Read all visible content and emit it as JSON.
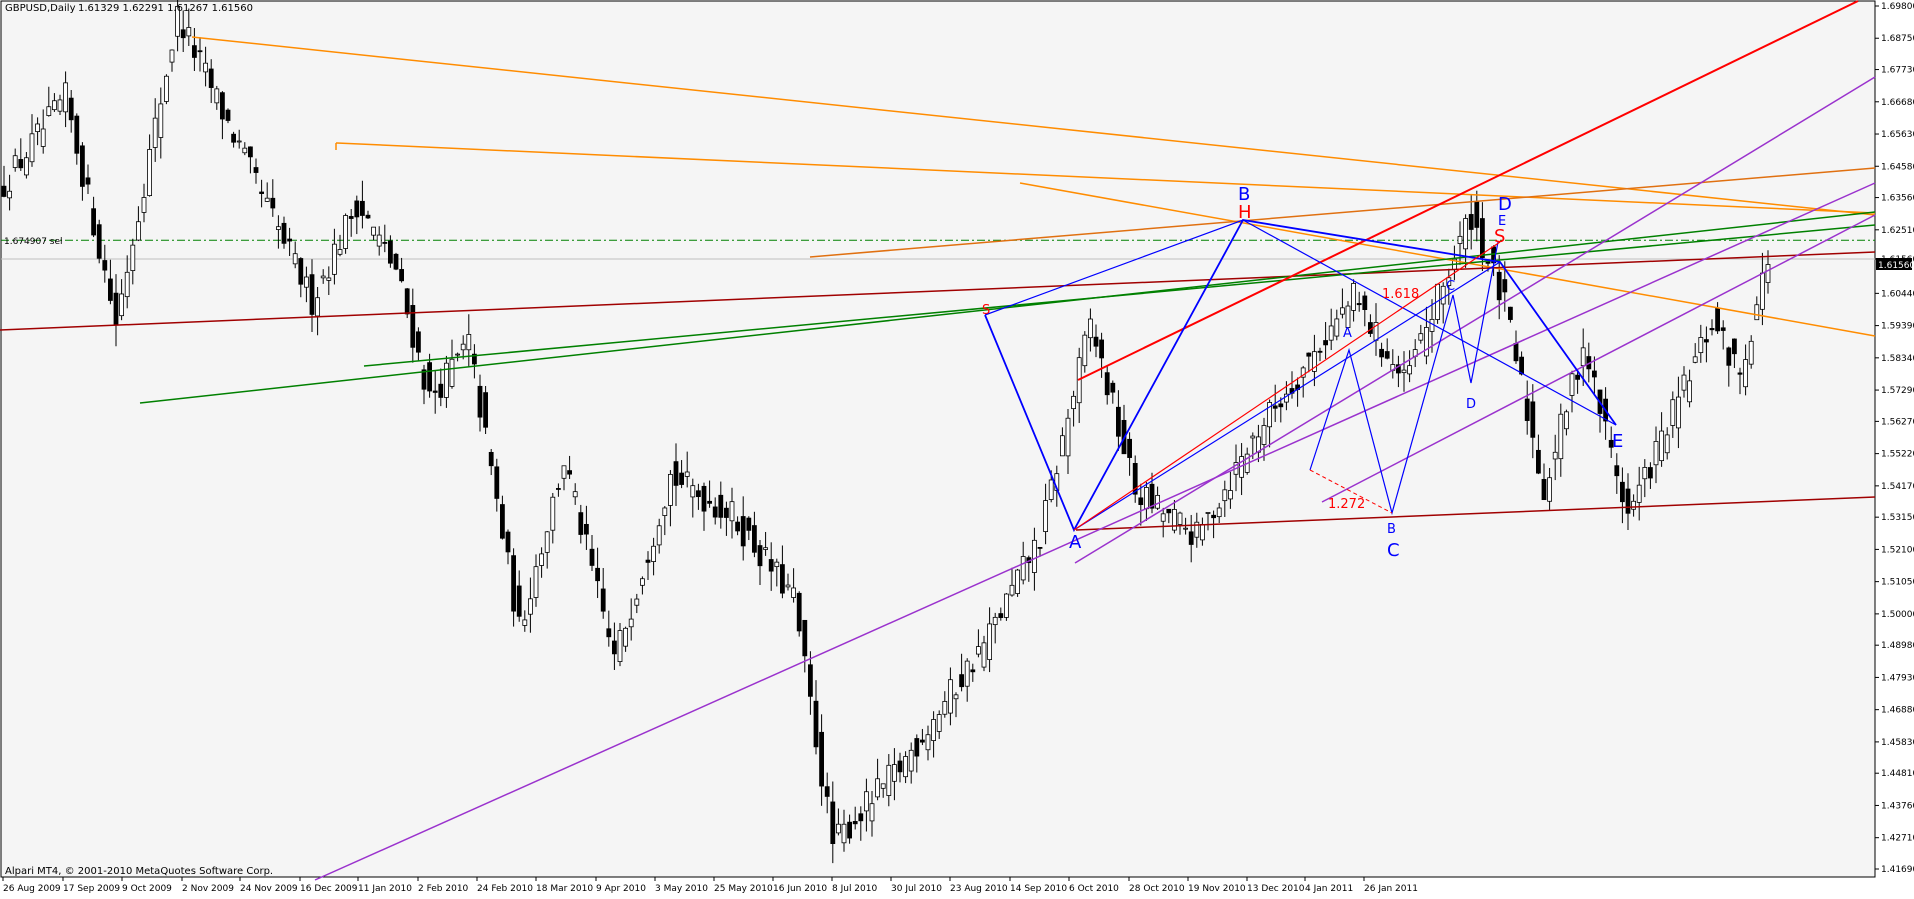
{
  "header": {
    "symbol": "GBPUSD,Daily",
    "ohlc": "1.61329 1.62291 1.61267 1.61560"
  },
  "footer": {
    "copyright": "Alpari MT4, © 2001-2010 MetaQuotes Software Corp."
  },
  "level_label": "1.674907 sel",
  "current_price_label": "1.61560",
  "colors": {
    "background": "#f5f5f5",
    "candle": "#000000",
    "orange": "#ff8c00",
    "dark_orange": "#e07010",
    "red": "#ff0000",
    "dark_red": "#a00000",
    "green": "#008000",
    "violet": "#9a32cd",
    "blue": "#0000ff"
  },
  "chart_data": {
    "type": "candlestick",
    "x_tick_labels": [
      "26 Aug 2009",
      "17 Sep 2009",
      "9 Oct 2009",
      "2 Nov 2009",
      "24 Nov 2009",
      "16 Dec 2009",
      "11 Jan 2010",
      "2 Feb 2010",
      "24 Feb 2010",
      "18 Mar 2010",
      "9 Apr 2010",
      "3 May 2010",
      "25 May 2010",
      "16 Jun 2010",
      "8 Jul 2010",
      "30 Jul 2010",
      "23 Aug 2010",
      "14 Sep 2010",
      "6 Oct 2010",
      "28 Oct 2010",
      "19 Nov 2010",
      "13 Dec 2010",
      "4 Jan 2011",
      "26 Jan 2011"
    ],
    "y_tick_labels": [
      "1.69800",
      "1.68750",
      "1.67730",
      "1.66680",
      "1.65630",
      "1.64580",
      "1.63560",
      "1.62510",
      "1.61560",
      "1.60440",
      "1.59390",
      "1.58340",
      "1.57290",
      "1.56270",
      "1.55220",
      "1.54170",
      "1.53150",
      "1.52100",
      "1.51050",
      "1.50000",
      "1.48980",
      "1.47930",
      "1.46880",
      "1.45830",
      "1.44810",
      "1.43760",
      "1.42710",
      "1.41690"
    ],
    "ylim": [
      1.4169,
      1.698
    ],
    "horizontal_levels": [
      1.6217,
      1.6156
    ],
    "close_anchors": [
      [
        0,
        1.64
      ],
      [
        11,
        1.668
      ],
      [
        20,
        1.595
      ],
      [
        31,
        1.695
      ],
      [
        45,
        1.64
      ],
      [
        55,
        1.602
      ],
      [
        63,
        1.634
      ],
      [
        70,
        1.612
      ],
      [
        76,
        1.57
      ],
      [
        83,
        1.588
      ],
      [
        92,
        1.495
      ],
      [
        100,
        1.55
      ],
      [
        109,
        1.485
      ],
      [
        119,
        1.545
      ],
      [
        130,
        1.532
      ],
      [
        141,
        1.505
      ],
      [
        148,
        1.425
      ],
      [
        160,
        1.45
      ],
      [
        175,
        1.49
      ],
      [
        185,
        1.525
      ],
      [
        194,
        1.595
      ],
      [
        202,
        1.54
      ],
      [
        213,
        1.525
      ],
      [
        224,
        1.56
      ],
      [
        241,
        1.603
      ],
      [
        250,
        1.575
      ],
      [
        262,
        1.63
      ],
      [
        268,
        1.6
      ],
      [
        275,
        1.54
      ],
      [
        282,
        1.588
      ],
      [
        290,
        1.532
      ],
      [
        298,
        1.565
      ],
      [
        305,
        1.595
      ],
      [
        310,
        1.578
      ],
      [
        315,
        1.616
      ]
    ],
    "pattern_labels": [
      {
        "text": "B",
        "color": "blue",
        "size": "big"
      },
      {
        "text": "H",
        "color": "red",
        "size": "big"
      },
      {
        "text": "D",
        "color": "blue",
        "size": "big"
      },
      {
        "text": "E",
        "color": "blue",
        "size": "small"
      },
      {
        "text": "S",
        "color": "red",
        "size": "big"
      },
      {
        "text": "S",
        "color": "red",
        "size": "small"
      },
      {
        "text": "A",
        "color": "blue",
        "size": "big"
      },
      {
        "text": "C",
        "color": "blue",
        "size": "big"
      },
      {
        "text": "E",
        "color": "blue",
        "size": "big"
      },
      {
        "text": "A",
        "color": "blue",
        "size": "small"
      },
      {
        "text": "B",
        "color": "blue",
        "size": "small"
      },
      {
        "text": "C",
        "color": "blue",
        "size": "small"
      },
      {
        "text": "D",
        "color": "blue",
        "size": "small"
      },
      {
        "text": "1.618",
        "color": "red",
        "size": "small"
      },
      {
        "text": "1.272",
        "color": "red",
        "size": "small"
      }
    ]
  }
}
